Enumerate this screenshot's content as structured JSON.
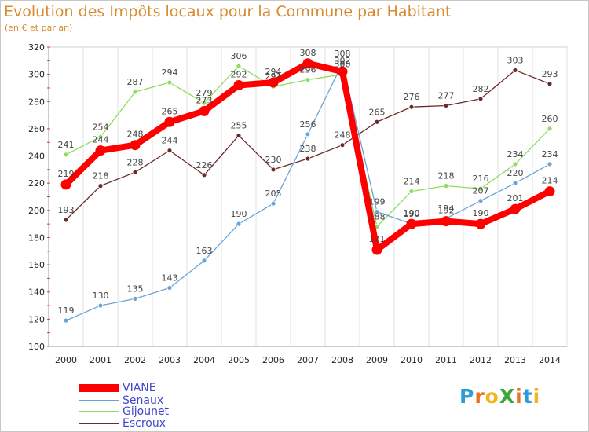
{
  "title": "Evolution des Impôts locaux pour la Commune par Habitant",
  "subtitle": "(en € et par an)",
  "logo": {
    "text": "ProXiti",
    "letters": [
      "P",
      "r",
      "o",
      "X",
      "i",
      "t",
      "i"
    ],
    "colors": [
      "#2f9bd6",
      "#e8731c",
      "#f2b51b",
      "#3aa53a",
      "#e8731c",
      "#2f9bd6",
      "#f2b51b"
    ]
  },
  "chart_data": {
    "type": "line",
    "title": "Evolution des Impôts locaux pour la Commune par Habitant",
    "ylabel": "(en € et par an)",
    "xlabel": "",
    "ylim": [
      100,
      320
    ],
    "yticks": [
      100,
      120,
      140,
      160,
      180,
      200,
      220,
      240,
      260,
      280,
      300,
      320
    ],
    "grid": "vertical",
    "categories": [
      "2000",
      "2001",
      "2002",
      "2003",
      "2004",
      "2005",
      "2006",
      "2007",
      "2008",
      "2009",
      "2010",
      "2011",
      "2012",
      "2013",
      "2014"
    ],
    "series": [
      {
        "name": "Escroux",
        "color": "#6e2a2a",
        "values": [
          193,
          218,
          228,
          244,
          226,
          255,
          230,
          238,
          248,
          265,
          276,
          277,
          282,
          303,
          293
        ],
        "labels": [
          "193",
          "218",
          "228",
          "244",
          "226",
          "255",
          "230",
          "238",
          "248",
          "265",
          "276",
          "277",
          "282",
          "303",
          "293"
        ]
      },
      {
        "name": "Gijounet",
        "color": "#8fdc5f",
        "values": [
          241,
          254,
          287,
          294,
          279,
          306,
          291,
          296,
          300,
          188,
          214,
          218,
          216,
          234,
          260
        ],
        "labels": [
          "241",
          "254",
          "287",
          "294",
          "279",
          "306",
          "291",
          "296",
          "300",
          "188",
          "214",
          "218",
          "216",
          "234",
          "260"
        ]
      },
      {
        "name": "Senaux",
        "color": "#6aa3d8",
        "values": [
          119,
          130,
          135,
          143,
          163,
          190,
          205,
          256,
          308,
          199,
          190,
          194,
          207,
          220,
          234
        ],
        "labels": [
          "119",
          "130",
          "135",
          "143",
          "163",
          "190",
          "205",
          "256",
          "308",
          "199",
          "190",
          "194",
          "207",
          "220",
          "234"
        ]
      },
      {
        "name": "VIANE",
        "color": "#ff0000",
        "values": [
          219,
          244,
          248,
          265,
          273,
          292,
          294,
          308,
          302,
          171,
          190,
          192,
          190,
          201,
          214
        ],
        "labels": [
          "219",
          "244",
          "248",
          "265",
          "273",
          "292",
          "294",
          "308",
          "302",
          "171",
          "190",
          "192",
          "190",
          "201",
          "214"
        ]
      }
    ],
    "legend": [
      "VIANE",
      "Senaux",
      "Gijounet",
      "Escroux"
    ],
    "legend_position": "bottom-left"
  }
}
